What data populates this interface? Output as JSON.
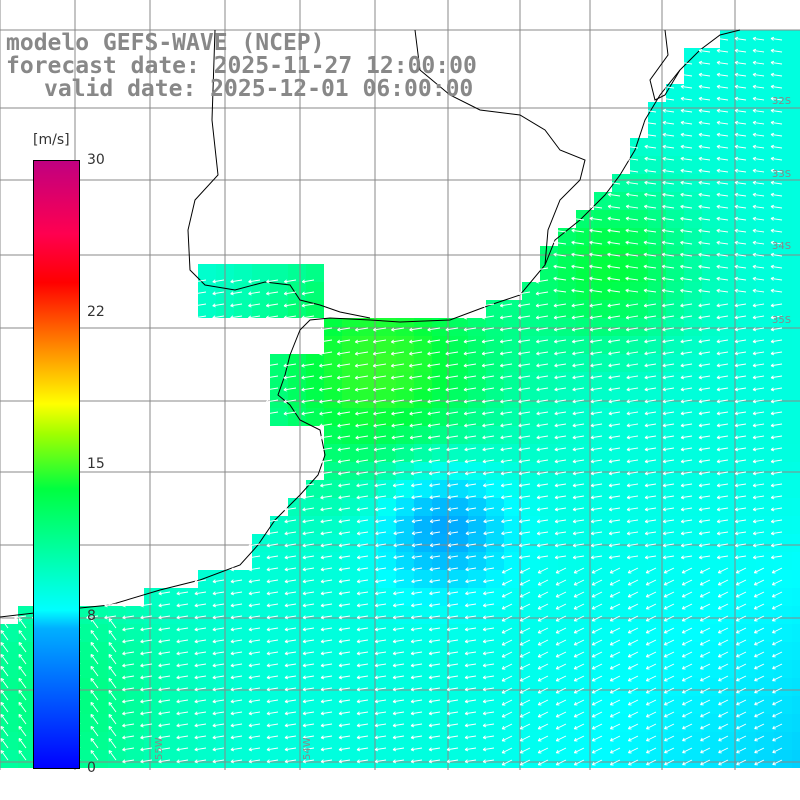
{
  "title": {
    "line1": "modelo GEFS-WAVE (NCEP)",
    "line2": "forecast date: 2025-11-27 12:00:00",
    "line3": "valid date: 2025-12-01 06:00:00"
  },
  "colorbar": {
    "unit": "[m/s]",
    "min": 0,
    "max": 30,
    "ticks": [
      "30",
      "22",
      "15",
      "8",
      "0"
    ],
    "tick_values": [
      30,
      22,
      15,
      8,
      0
    ],
    "colors": [
      "#0000ff",
      "#00b0ff",
      "#00ffff",
      "#00ff40",
      "#ffff00",
      "#ff8000",
      "#ff0000",
      "#c00080"
    ]
  },
  "map": {
    "land_color": "#ffffff",
    "coast_color": "#000000",
    "grid_color": "#808080",
    "wind_field": "westward winds ~7-11 m/s over the ocean, higher (~10-12 m/s) near the coast",
    "lat_labels": [
      "32S",
      "33S",
      "34S",
      "35S"
    ],
    "lon_labels": [
      "55W",
      "54W"
    ]
  }
}
